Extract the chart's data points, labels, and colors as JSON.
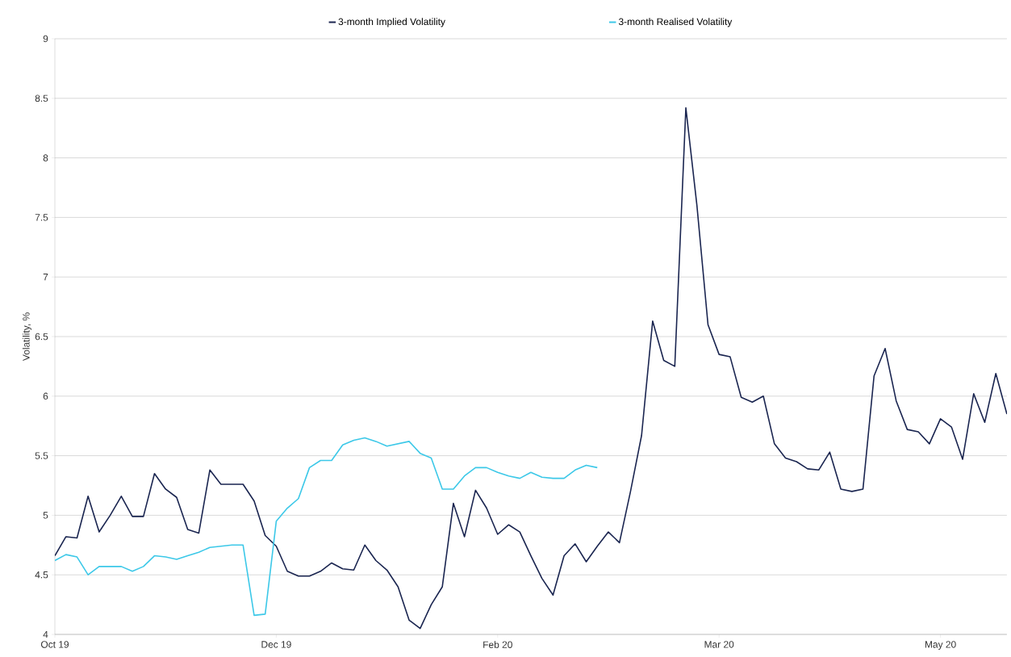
{
  "chart_data": {
    "type": "line",
    "ylabel": "Volatility, %",
    "categories": [
      "Oct 19",
      null,
      null,
      null,
      null,
      null,
      null,
      null,
      null,
      null,
      null,
      null,
      null,
      null,
      null,
      null,
      null,
      null,
      null,
      null,
      "Dec 19",
      null,
      null,
      null,
      null,
      null,
      null,
      null,
      null,
      null,
      null,
      null,
      null,
      null,
      null,
      null,
      null,
      null,
      null,
      null,
      "Feb 20",
      null,
      null,
      null,
      null,
      null,
      null,
      null,
      null,
      null,
      null,
      null,
      null,
      null,
      null,
      null,
      null,
      null,
      null,
      null,
      "Mar 20",
      null,
      null,
      null,
      null,
      null,
      null,
      null,
      null,
      null,
      null,
      null,
      null,
      null,
      null,
      null,
      null,
      null,
      null,
      null,
      "May 20",
      null,
      null,
      null,
      null,
      null,
      null
    ],
    "ylim": [
      4,
      9
    ],
    "yticks": [
      4,
      4.5,
      5,
      5.5,
      6,
      6.5,
      7,
      7.5,
      8,
      8.5,
      9
    ],
    "grid": "y",
    "legend": "top",
    "marker": "none",
    "line_style": "solid",
    "series": [
      {
        "name": "3-month Implied Volatility",
        "color": "#1a2550",
        "values": [
          4.66,
          4.82,
          4.81,
          5.16,
          4.86,
          5.0,
          5.16,
          4.99,
          4.99,
          5.35,
          5.22,
          5.15,
          4.88,
          4.85,
          5.38,
          5.26,
          5.26,
          5.26,
          5.12,
          4.83,
          4.74,
          4.53,
          4.49,
          4.49,
          4.53,
          4.6,
          4.55,
          4.54,
          4.75,
          4.62,
          4.54,
          4.4,
          4.12,
          4.05,
          4.25,
          4.4,
          5.1,
          4.82,
          5.21,
          5.06,
          4.84,
          4.92,
          4.86,
          4.66,
          4.47,
          4.33,
          4.66,
          4.76,
          4.61,
          4.74,
          4.86,
          4.77,
          5.2,
          5.67,
          6.63,
          6.3,
          6.25,
          8.42,
          7.6,
          6.6,
          6.35,
          6.33,
          5.99,
          5.95,
          6.0,
          5.6,
          5.48,
          5.45,
          5.39,
          5.38,
          5.53,
          5.22,
          5.2,
          5.22,
          6.17,
          6.4,
          5.96,
          5.72,
          5.7,
          5.6,
          5.81,
          5.74,
          5.47,
          6.02,
          5.78,
          6.19,
          5.85
        ]
      },
      {
        "name": "3-month Realised Volatility",
        "color": "#3cc8e8",
        "values": [
          4.62,
          4.67,
          4.65,
          4.5,
          4.57,
          4.57,
          4.57,
          4.53,
          4.57,
          4.66,
          4.65,
          4.63,
          4.66,
          4.69,
          4.73,
          4.74,
          4.75,
          4.75,
          4.16,
          4.17,
          4.95,
          5.06,
          5.14,
          5.4,
          5.46,
          5.46,
          5.59,
          5.63,
          5.65,
          5.62,
          5.58,
          5.6,
          5.62,
          5.52,
          5.48,
          5.22,
          5.22,
          5.33,
          5.4,
          5.4,
          5.36,
          5.33,
          5.31,
          5.36,
          5.32,
          5.31,
          5.31,
          5.38,
          5.42,
          5.4,
          null,
          null,
          null,
          null,
          null,
          null,
          null,
          null,
          null,
          null,
          null,
          null,
          null,
          null,
          null,
          null,
          null,
          null,
          null,
          null,
          null,
          null,
          null,
          null,
          null,
          null,
          null,
          null,
          null,
          null,
          null,
          null,
          null,
          null,
          null,
          null,
          null
        ]
      }
    ]
  }
}
